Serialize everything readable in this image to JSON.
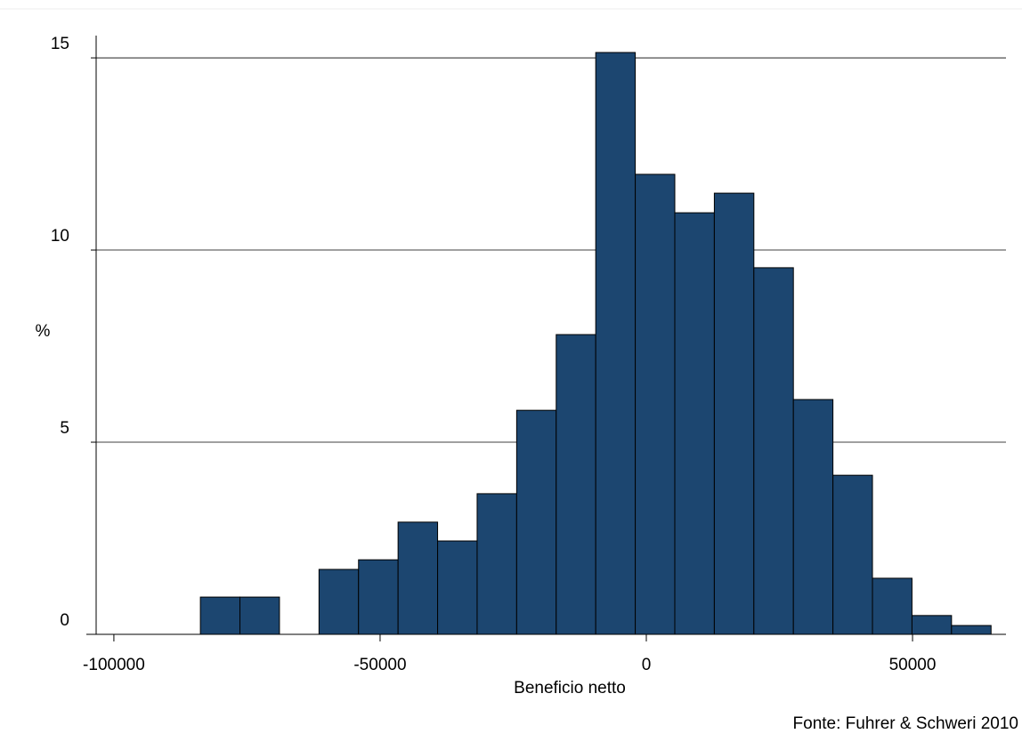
{
  "chart_data": {
    "type": "histogram",
    "x_label": "Beneficio netto",
    "y_label": "%",
    "source": "Fonte: Fuhrer & Schweri 2010",
    "bins": [
      -83750,
      -76325,
      -68900,
      -61475,
      -54050,
      -46625,
      -39200,
      -31775,
      -24350,
      -16925,
      -9500,
      -2075,
      5350,
      12775,
      20200,
      27625,
      35050,
      42475,
      49900,
      57325,
      64750
    ],
    "values": [
      0.97,
      0.97,
      0,
      1.69,
      1.94,
      2.92,
      2.43,
      3.66,
      5.83,
      7.8,
      15.14,
      11.97,
      10.97,
      11.48,
      9.54,
      6.11,
      4.14,
      1.46,
      0.49,
      0.23
    ],
    "color": "#1c4670",
    "xlim": [
      -105170,
      67550
    ],
    "ylim": [
      0,
      15.58
    ],
    "xticks": [
      -100000,
      -50000,
      0,
      50000
    ],
    "yticks": [
      0,
      5,
      10,
      15
    ],
    "grid": true
  }
}
